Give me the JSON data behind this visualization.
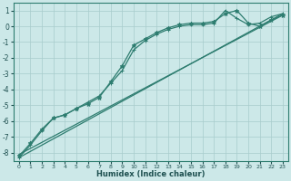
{
  "xlabel": "Humidex (Indice chaleur)",
  "ylabel": "",
  "xlim": [
    -0.5,
    23.5
  ],
  "ylim": [
    -8.5,
    1.5
  ],
  "yticks": [
    1,
    0,
    -1,
    -2,
    -3,
    -4,
    -5,
    -6,
    -7,
    -8
  ],
  "xticks": [
    0,
    1,
    2,
    3,
    4,
    5,
    6,
    7,
    8,
    9,
    10,
    11,
    12,
    13,
    14,
    15,
    16,
    17,
    18,
    19,
    20,
    21,
    22,
    23
  ],
  "bg_color": "#cce8e8",
  "grid_color": "#a8cccc",
  "line_color": "#2e7d70",
  "lines": [
    {
      "x": [
        0,
        1,
        2,
        3,
        4,
        5,
        6,
        7,
        8,
        9,
        10,
        11,
        12,
        13,
        14,
        15,
        16,
        17,
        18,
        19,
        20,
        21,
        22,
        23
      ],
      "y": [
        -8.3,
        -7.5,
        -6.6,
        -5.8,
        -5.6,
        -5.2,
        -4.8,
        -4.4,
        -3.6,
        -2.8,
        -1.5,
        -0.9,
        -0.5,
        -0.2,
        0.0,
        0.1,
        0.1,
        0.2,
        1.0,
        0.5,
        0.1,
        0.2,
        0.6,
        0.8
      ],
      "marker": "+",
      "ms": 3.5,
      "lw": 0.9
    },
    {
      "x": [
        0,
        1,
        2,
        3,
        4,
        5,
        6,
        7,
        8,
        9,
        10,
        11,
        12,
        13,
        14,
        15,
        16,
        17,
        18,
        19,
        20,
        21,
        22,
        23
      ],
      "y": [
        -8.2,
        -7.4,
        -6.5,
        -5.8,
        -5.6,
        -5.2,
        -4.9,
        -4.5,
        -3.5,
        -2.5,
        -1.2,
        -0.8,
        -0.4,
        -0.1,
        0.1,
        0.2,
        0.2,
        0.3,
        0.8,
        1.0,
        0.2,
        0.0,
        0.4,
        0.7
      ],
      "marker": "*",
      "ms": 3.5,
      "lw": 0.9
    },
    {
      "x": [
        0,
        23
      ],
      "y": [
        -8.3,
        0.8
      ],
      "marker": null,
      "ms": 0,
      "lw": 0.9
    },
    {
      "x": [
        0,
        23
      ],
      "y": [
        -8.1,
        0.7
      ],
      "marker": null,
      "ms": 0,
      "lw": 0.9
    }
  ]
}
